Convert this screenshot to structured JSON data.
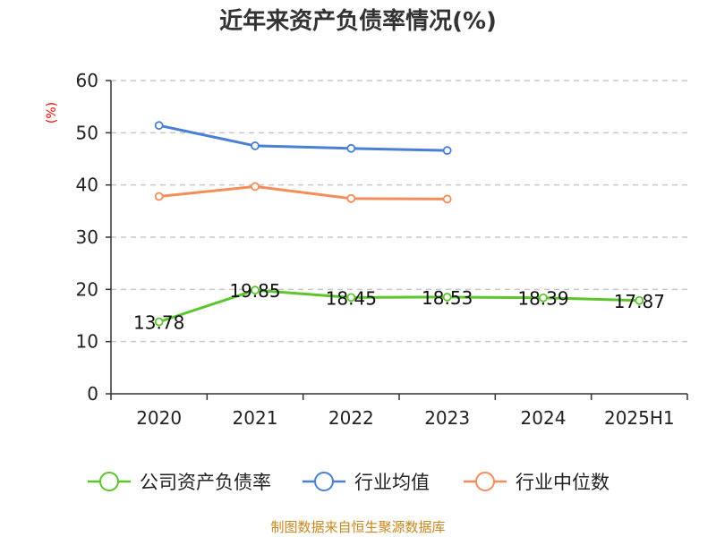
{
  "title": "近年来资产负债率情况(%)",
  "source": "制图数据来自恒生聚源数据库",
  "colors": {
    "company": "#5cc52b",
    "industry_avg": "#4a7fd6",
    "industry_median": "#f58c5a",
    "grid": "#c8c8c8",
    "axis": "#333333",
    "unit": "#ff0000",
    "source": "#c8861e"
  },
  "chart_data": {
    "type": "line",
    "title": "近年来资产负债率情况(%)",
    "categories": [
      "2020",
      "2021",
      "2022",
      "2023",
      "2024",
      "2025H1"
    ],
    "ylabel": "(%)",
    "xlabel": "",
    "ylim": [
      0,
      60
    ],
    "yticks": [
      0,
      10,
      20,
      30,
      40,
      50,
      60
    ],
    "grid": true,
    "legend_position": "bottom",
    "series": [
      {
        "name": "公司资产负债率",
        "key": "company",
        "values": [
          13.78,
          19.85,
          18.45,
          18.53,
          18.39,
          17.87
        ],
        "labels": [
          "13.78",
          "19.85",
          "18.45",
          "18.53",
          "18.39",
          "17.87"
        ]
      },
      {
        "name": "行业均值",
        "key": "industry_avg",
        "values": [
          51.4,
          47.5,
          47.0,
          46.6,
          null,
          null
        ]
      },
      {
        "name": "行业中位数",
        "key": "industry_median",
        "values": [
          37.8,
          39.7,
          37.4,
          37.3,
          null,
          null
        ]
      }
    ]
  }
}
